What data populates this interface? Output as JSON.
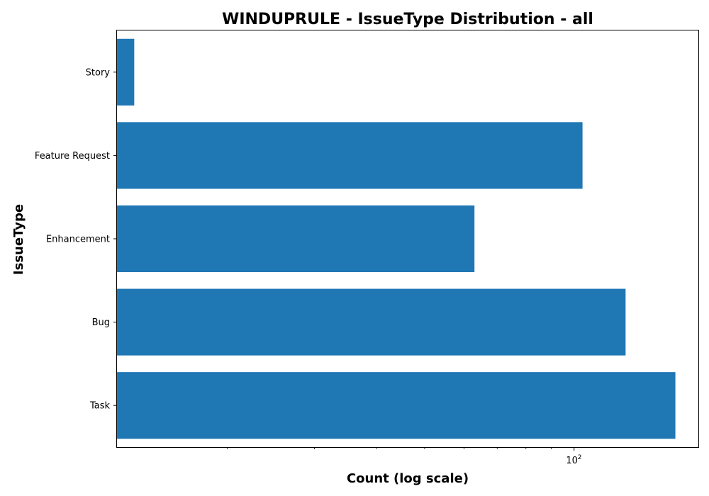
{
  "chart_data": {
    "type": "bar",
    "orientation": "horizontal",
    "title": "WINDUPRULE - IssueType Distribution - all",
    "xlabel": "Count (log scale)",
    "ylabel": "IssueType",
    "x_scale": "log",
    "xlim": [
      12,
      178
    ],
    "categories": [
      "Task",
      "Bug",
      "Enhancement",
      "Feature Request",
      "Story"
    ],
    "values": [
      160,
      127,
      63,
      104,
      13
    ],
    "bar_color": "#1f77b4",
    "x_major_ticks": [
      {
        "value": 100,
        "base": "10",
        "exponent": "2"
      }
    ],
    "x_minor_ticks": [
      20,
      30,
      40,
      50,
      60,
      70,
      80,
      90
    ],
    "grid": false,
    "legend": "none"
  }
}
